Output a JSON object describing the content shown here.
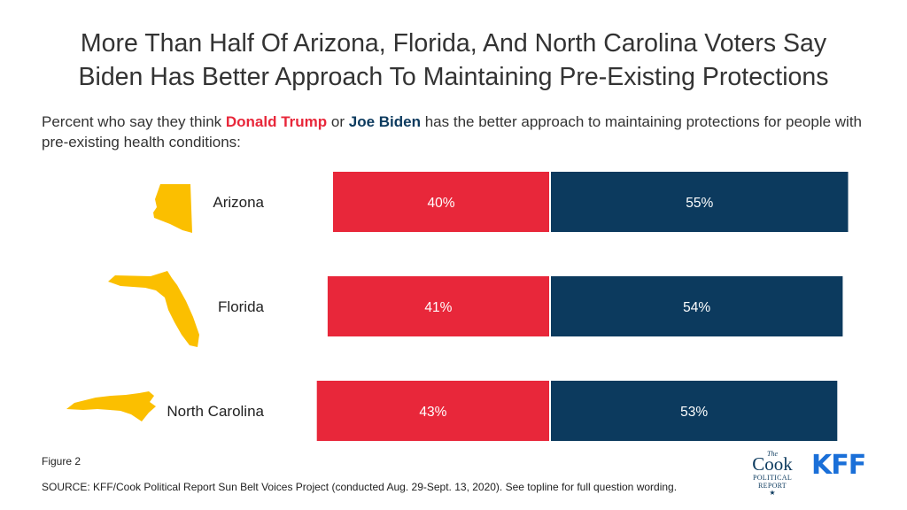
{
  "title_line1": "More Than Half Of Arizona, Florida, And North Carolina Voters Say",
  "title_line2": "Biden Has Better Approach To Maintaining Pre-Existing Protections",
  "subtitle": {
    "prefix": "Percent who say they think ",
    "trump": "Donald Trump",
    "middle": " or ",
    "biden": "Joe Biden",
    "suffix": " has the better approach to maintaining protections for people with pre-existing health conditions:"
  },
  "colors": {
    "trump": "#e8273a",
    "biden": "#0c3a5e",
    "state_icon": "#fbbf00"
  },
  "chart_data": {
    "type": "bar",
    "orientation": "horizontal-diverging",
    "categories": [
      "Arizona",
      "Florida",
      "North Carolina"
    ],
    "series": [
      {
        "name": "Donald Trump",
        "values": [
          40,
          41,
          43
        ],
        "labels": [
          "40%",
          "41%",
          "43%"
        ]
      },
      {
        "name": "Joe Biden",
        "values": [
          55,
          54,
          53
        ],
        "labels": [
          "55%",
          "54%",
          "53%"
        ]
      }
    ]
  },
  "figure": "Figure 2",
  "source": "SOURCE: KFF/Cook Political Report Sun Belt Voices Project (conducted Aug. 29-Sept. 13, 2020). See topline for full question wording.",
  "logos": {
    "cook": {
      "the": "The",
      "name": "Cook",
      "line2": "POLITICAL",
      "line3": "REPORT",
      "star": "★"
    },
    "kff": "KFF"
  }
}
